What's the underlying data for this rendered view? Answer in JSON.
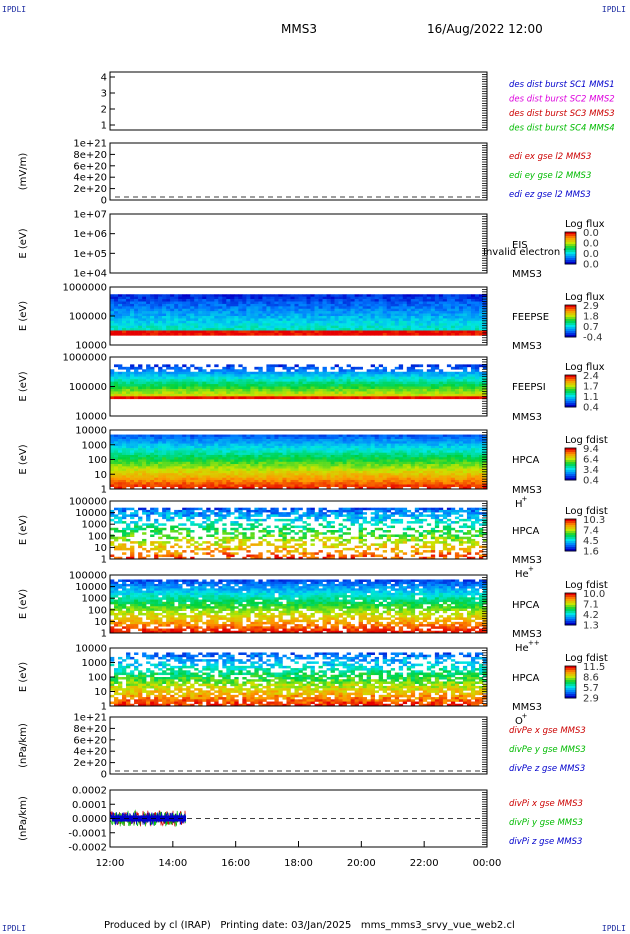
{
  "header": {
    "mission": "MMS3",
    "datetime": "16/Aug/2022 12:00"
  },
  "corner_marks": {
    "top_left": "IPDLI",
    "top_right": "IPDLI",
    "bottom_left": "IPDLI",
    "bottom_right": "IPDLI"
  },
  "footer": "Produced by cl (IRAP)   Printing date: 03/Jan/2025   mms_mms3_srvy_vue_web2.cl",
  "colors": {
    "blue": "#0000cc",
    "magenta": "#dd00dd",
    "red": "#cc0000",
    "green": "#00bb00"
  },
  "chart_data": [
    {
      "type": "line",
      "ylabel": "",
      "yticks": [
        "4",
        "3",
        "2",
        "1"
      ],
      "legend": [
        {
          "text": "des dist burst SC1 MMS1",
          "color": "#0000cc"
        },
        {
          "text": "des dist burst SC2 MMS2",
          "color": "#dd00dd"
        },
        {
          "text": "des dist burst SC3 MMS3",
          "color": "#cc0000"
        },
        {
          "text": "des dist burst SC4 MMS4",
          "color": "#00bb00"
        }
      ]
    },
    {
      "type": "line",
      "ylabel": "(mV/m)",
      "yticks": [
        "1e+21",
        "8e+20",
        "6e+20",
        "4e+20",
        "2e+20",
        "0"
      ],
      "zero_line": true,
      "legend": [
        {
          "text": "edi ex gse l2 MMS3",
          "color": "#cc0000"
        },
        {
          "text": "edi ey gse l2 MMS3",
          "color": "#00bb00"
        },
        {
          "text": "edi ez gse l2 MMS3",
          "color": "#0000cc"
        }
      ]
    },
    {
      "type": "heatmap",
      "ylabel": "E (eV)",
      "yticks": [
        "1e+07",
        "1e+06",
        "1e+05",
        "1e+04"
      ],
      "empty": true,
      "instrument": [
        "EIS",
        "MMS3"
      ],
      "overlay": "Invalid electron to",
      "colorbar": {
        "title": "Log flux",
        "ticks": [
          "0.0",
          "0.0",
          "0.0",
          "0.0"
        ]
      }
    },
    {
      "type": "heatmap",
      "ylabel": "E (eV)",
      "yticks": [
        "1000000",
        "100000",
        "10000"
      ],
      "instrument": [
        "FEEPSE",
        "MMS3"
      ],
      "colorbar": {
        "title": "Log flux",
        "ticks": [
          "2.9",
          "1.8",
          "0.7",
          "-0.4"
        ]
      }
    },
    {
      "type": "heatmap",
      "ylabel": "E (eV)",
      "yticks": [
        "1000000",
        "100000",
        "10000"
      ],
      "instrument": [
        "FEEPSI",
        "MMS3"
      ],
      "colorbar": {
        "title": "Log flux",
        "ticks": [
          "2.4",
          "1.7",
          "1.1",
          "0.4"
        ]
      }
    },
    {
      "type": "heatmap",
      "ylabel": "E (eV)",
      "yticks": [
        "10000",
        "1000",
        "100",
        "10",
        "1"
      ],
      "instrument": [
        "HPCA",
        "MMS3"
      ],
      "species": "H",
      "charge": "+",
      "colorbar": {
        "title": "Log fdist",
        "ticks": [
          "9.4",
          "6.4",
          "3.4",
          "0.4"
        ]
      }
    },
    {
      "type": "heatmap",
      "ylabel": "E (eV)",
      "yticks": [
        "100000",
        "10000",
        "1000",
        "100",
        "10",
        "1"
      ],
      "instrument": [
        "HPCA",
        "MMS3"
      ],
      "species": "He",
      "charge": "+",
      "colorbar": {
        "title": "Log fdist",
        "ticks": [
          "10.3",
          "7.4",
          "4.5",
          "1.6"
        ]
      }
    },
    {
      "type": "heatmap",
      "ylabel": "E (eV)",
      "yticks": [
        "100000",
        "10000",
        "1000",
        "100",
        "10",
        "1"
      ],
      "instrument": [
        "HPCA",
        "MMS3"
      ],
      "species": "He",
      "charge": "++",
      "colorbar": {
        "title": "Log fdist",
        "ticks": [
          "10.0",
          "7.1",
          "4.2",
          "1.3"
        ]
      }
    },
    {
      "type": "heatmap",
      "ylabel": "E (eV)",
      "yticks": [
        "10000",
        "1000",
        "100",
        "10",
        "1"
      ],
      "instrument": [
        "HPCA",
        "MMS3"
      ],
      "species": "O",
      "charge": "+",
      "colorbar": {
        "title": "Log fdist",
        "ticks": [
          "11.5",
          "8.6",
          "5.7",
          "2.9"
        ]
      }
    },
    {
      "type": "line",
      "ylabel": "(nPa/km)",
      "yticks": [
        "1e+21",
        "8e+20",
        "6e+20",
        "4e+20",
        "2e+20",
        "0"
      ],
      "zero_line": true,
      "legend": [
        {
          "text": "divPe x gse MMS3",
          "color": "#cc0000"
        },
        {
          "text": "divPe y gse MMS3",
          "color": "#00bb00"
        },
        {
          "text": "divPe z gse MMS3",
          "color": "#0000cc"
        }
      ]
    },
    {
      "type": "line",
      "ylabel": "(nPa/km)",
      "yticks": [
        "0.0002",
        "0.0001",
        "0.0000",
        "-0.0001",
        "-0.0002"
      ],
      "zero_line": true,
      "data_range": [
        "12:00",
        "14:25"
      ],
      "legend": [
        {
          "text": "divPi x gse MMS3",
          "color": "#cc0000"
        },
        {
          "text": "divPi y gse MMS3",
          "color": "#00bb00"
        },
        {
          "text": "divPi z gse MMS3",
          "color": "#0000cc"
        }
      ]
    }
  ],
  "xaxis": {
    "ticks": [
      "12:00",
      "14:00",
      "16:00",
      "18:00",
      "20:00",
      "22:00",
      "00:00"
    ]
  }
}
